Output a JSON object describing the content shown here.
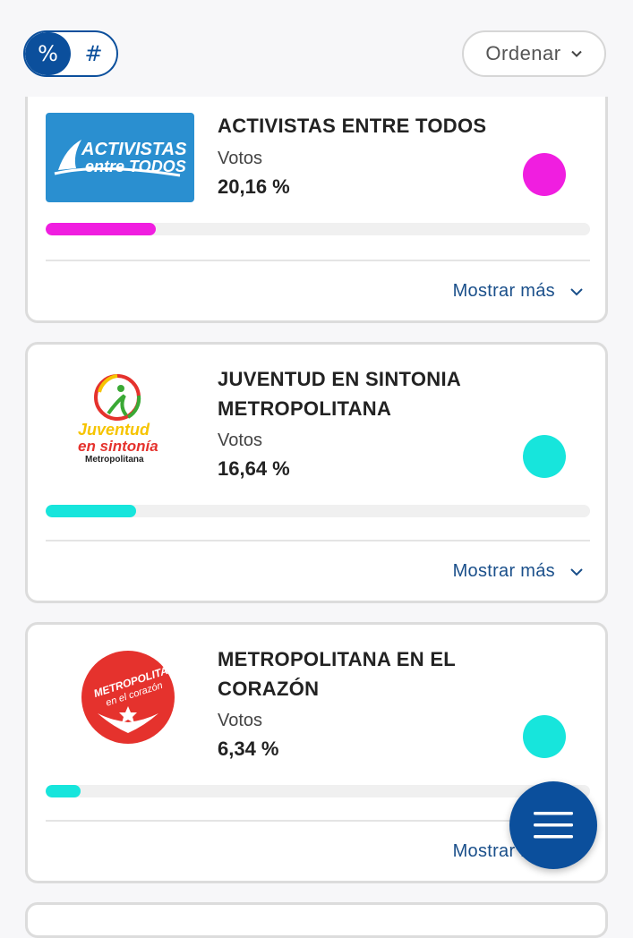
{
  "toolbar": {
    "toggle": [
      {
        "label": "%",
        "active": true
      },
      {
        "label": "#",
        "active": false
      }
    ],
    "sort_label": "Ordenar",
    "sort_icon": "chevron-down-icon"
  },
  "parties": [
    {
      "logo_lines": [
        "ACTIVISTAS",
        "entre TODOS"
      ],
      "name": "ACTIVISTAS ENTRE TODOS",
      "votes_label": "Votos",
      "votes_value": "20,16 %",
      "percent": 20.16,
      "color": "#f01ee0",
      "more_label": "Mostrar más"
    },
    {
      "logo_lines": [
        "Juventud",
        "en sintonía",
        "Metropolitana"
      ],
      "name_lines": [
        "JUVENTUD EN SINTONIA",
        "METROPOLITANA"
      ],
      "votes_label": "Votos",
      "votes_value": "16,64 %",
      "percent": 16.64,
      "color": "#17e5dc",
      "more_label": "Mostrar más"
    },
    {
      "logo_lines": [
        "METROPOLITANA",
        "en el corazón"
      ],
      "name_lines": [
        "METROPOLITANA EN EL",
        "CORAZÓN"
      ],
      "votes_label": "Votos",
      "votes_value": "6,34 %",
      "percent": 6.34,
      "color": "#17e5dc",
      "more_label": "Mostrar más"
    }
  ],
  "fab": {
    "icon": "menu-icon"
  },
  "colors": {
    "primary": "#0b4f9c",
    "link": "#1a4f8a"
  }
}
